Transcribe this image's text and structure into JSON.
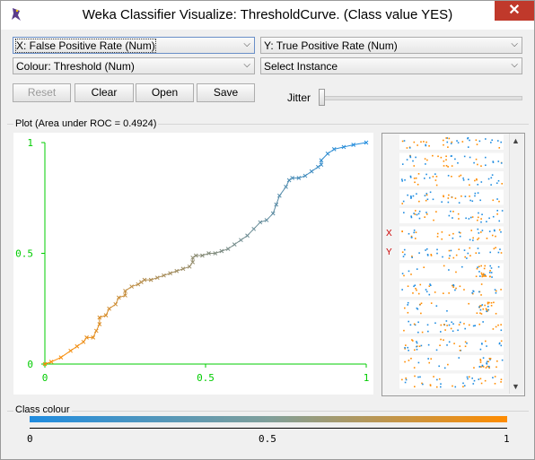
{
  "window": {
    "title": "Weka Classifier Visualize: ThresholdCurve. (Class value YES)",
    "close_glyph": "✕"
  },
  "controls": {
    "x_axis": "X: False Positive Rate (Num)",
    "y_axis": "Y: True Positive Rate (Num)",
    "colour": "Colour: Threshold (Num)",
    "instance": "Select Instance",
    "buttons": {
      "reset": "Reset",
      "clear": "Clear",
      "open": "Open",
      "save": "Save"
    },
    "jitter_label": "Jitter",
    "jitter_value": 0
  },
  "plot": {
    "title": "Plot (Area under ROC = 0.4924)",
    "x_ticks": [
      "0",
      "0.5",
      "1"
    ],
    "y_ticks": [
      "0",
      "0.5",
      "1"
    ],
    "axis_color": "#00cc00",
    "marker": "x",
    "color_low": "#ff8c00",
    "color_high": "#1f8ce0"
  },
  "chart_data": {
    "type": "line",
    "title": "Plot (Area under ROC = 0.4924)",
    "xlabel": "",
    "ylabel": "",
    "xlim": [
      0,
      1
    ],
    "ylim": [
      0,
      1
    ],
    "x": [
      0,
      0.02,
      0.05,
      0.08,
      0.1,
      0.12,
      0.13,
      0.15,
      0.16,
      0.17,
      0.17,
      0.19,
      0.2,
      0.22,
      0.23,
      0.25,
      0.25,
      0.27,
      0.29,
      0.3,
      0.31,
      0.33,
      0.35,
      0.37,
      0.39,
      0.41,
      0.43,
      0.45,
      0.46,
      0.46,
      0.47,
      0.49,
      0.51,
      0.53,
      0.55,
      0.57,
      0.59,
      0.61,
      0.63,
      0.65,
      0.67,
      0.69,
      0.71,
      0.72,
      0.73,
      0.75,
      0.76,
      0.77,
      0.79,
      0.81,
      0.83,
      0.85,
      0.86,
      0.86,
      0.88,
      0.9,
      0.93,
      0.96,
      1.0
    ],
    "y": [
      0,
      0.01,
      0.03,
      0.06,
      0.08,
      0.1,
      0.12,
      0.12,
      0.15,
      0.18,
      0.21,
      0.22,
      0.25,
      0.27,
      0.3,
      0.31,
      0.33,
      0.35,
      0.36,
      0.37,
      0.38,
      0.38,
      0.39,
      0.4,
      0.41,
      0.42,
      0.43,
      0.44,
      0.46,
      0.48,
      0.49,
      0.49,
      0.5,
      0.5,
      0.51,
      0.52,
      0.54,
      0.56,
      0.58,
      0.61,
      0.64,
      0.65,
      0.68,
      0.72,
      0.76,
      0.8,
      0.83,
      0.84,
      0.84,
      0.85,
      0.87,
      0.89,
      0.9,
      0.92,
      0.95,
      0.97,
      0.98,
      0.99,
      1.0
    ],
    "grid": false
  },
  "attribute_panel": {
    "x_marker": "X",
    "y_marker": "Y",
    "bar_count": 14,
    "scroll_up": "▲",
    "scroll_down": "▼"
  },
  "class_colour": {
    "title": "Class colour",
    "ticks": [
      "0",
      "0.5",
      "1"
    ],
    "color_low": "#1f8ce0",
    "color_high": "#ff8c00"
  }
}
